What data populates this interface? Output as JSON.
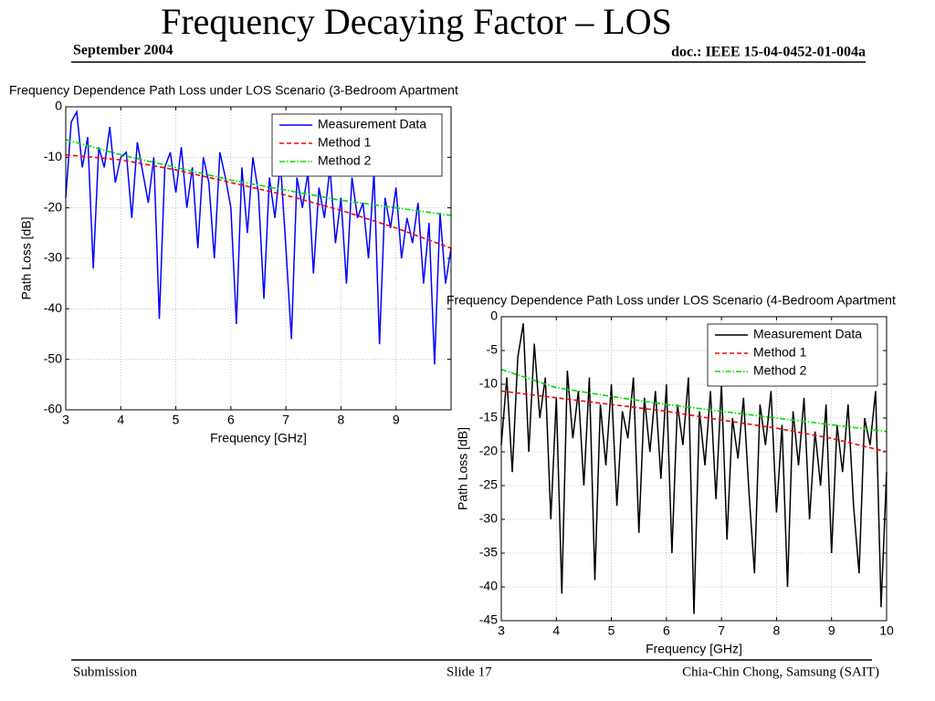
{
  "header": {
    "title": "Frequency Decaying Factor – LOS",
    "date": "September 2004",
    "doc": "doc.: IEEE 15-04-0452-01-004a"
  },
  "footer": {
    "left": "Submission",
    "center": "Slide 17",
    "right": "Chia-Chin Chong, Samsung (SAIT)"
  },
  "chart_data": [
    {
      "type": "line",
      "title": "Frequency Dependence Path Loss under LOS Scenario (3-Bedroom Apartment",
      "xlabel": "Frequency [GHz]",
      "ylabel": "Path Loss [dB]",
      "xlim": [
        3,
        10
      ],
      "xticks": [
        3,
        4,
        5,
        6,
        7,
        8,
        9
      ],
      "ylim": [
        -60,
        0
      ],
      "yticks": [
        0,
        -10,
        -20,
        -30,
        -40,
        -50,
        -60
      ],
      "grid": true,
      "legend": "upper right",
      "series": [
        {
          "name": "Measurement Data",
          "color": "#0000ff",
          "linestyle": "solid",
          "x": [
            3.0,
            3.1,
            3.2,
            3.3,
            3.4,
            3.5,
            3.6,
            3.7,
            3.8,
            3.9,
            4.0,
            4.1,
            4.2,
            4.3,
            4.4,
            4.5,
            4.6,
            4.7,
            4.8,
            4.9,
            5.0,
            5.1,
            5.2,
            5.3,
            5.4,
            5.5,
            5.6,
            5.7,
            5.8,
            5.9,
            6.0,
            6.1,
            6.2,
            6.3,
            6.4,
            6.5,
            6.6,
            6.7,
            6.8,
            6.9,
            7.0,
            7.1,
            7.2,
            7.3,
            7.4,
            7.5,
            7.6,
            7.7,
            7.8,
            7.9,
            8.0,
            8.1,
            8.2,
            8.3,
            8.4,
            8.5,
            8.6,
            8.7,
            8.8,
            8.9,
            9.0,
            9.1,
            9.2,
            9.3,
            9.4,
            9.5,
            9.6,
            9.7,
            9.8,
            9.9,
            10.0
          ],
          "values": [
            -18,
            -3,
            -1,
            -12,
            -6,
            -32,
            -8,
            -12,
            -4,
            -15,
            -10,
            -9,
            -22,
            -7,
            -13,
            -19,
            -10,
            -42,
            -12,
            -9,
            -17,
            -8,
            -20,
            -12,
            -28,
            -10,
            -15,
            -30,
            -9,
            -14,
            -20,
            -43,
            -12,
            -25,
            -10,
            -17,
            -38,
            -14,
            -22,
            -11,
            -28,
            -46,
            -14,
            -20,
            -13,
            -33,
            -16,
            -22,
            -12,
            -27,
            -18,
            -35,
            -14,
            -22,
            -19,
            -30,
            -13,
            -47,
            -18,
            -24,
            -16,
            -30,
            -22,
            -27,
            -19,
            -35,
            -23,
            -51,
            -21,
            -35,
            -28
          ]
        },
        {
          "name": "Method 1",
          "color": "#ff0000",
          "linestyle": "dashed",
          "x": [
            3,
            4,
            5,
            6,
            7,
            8,
            9,
            10
          ],
          "values": [
            -9.5,
            -10.5,
            -12.5,
            -15,
            -17.5,
            -20.5,
            -24,
            -28
          ]
        },
        {
          "name": "Method 2",
          "color": "#00dd00",
          "linestyle": "dashdot",
          "x": [
            3,
            4,
            5,
            6,
            7,
            8,
            9,
            10
          ],
          "values": [
            -6.5,
            -9.5,
            -12,
            -14.5,
            -16.5,
            -18.5,
            -20,
            -21.5
          ]
        }
      ]
    },
    {
      "type": "line",
      "title": "Frequency Dependence Path Loss under LOS Scenario (4-Bedroom Apartment",
      "xlabel": "Frequency [GHz]",
      "ylabel": "Path Loss [dB]",
      "xlim": [
        3,
        10
      ],
      "xticks": [
        3,
        4,
        5,
        6,
        7,
        8,
        9,
        10
      ],
      "ylim": [
        -45,
        0
      ],
      "yticks": [
        0,
        -5,
        -10,
        -15,
        -20,
        -25,
        -30,
        -35,
        -40,
        -45
      ],
      "grid": true,
      "legend": "upper right",
      "series": [
        {
          "name": "Measurement Data",
          "color": "#000000",
          "linestyle": "solid",
          "x": [
            3.0,
            3.1,
            3.2,
            3.3,
            3.4,
            3.5,
            3.6,
            3.7,
            3.8,
            3.9,
            4.0,
            4.1,
            4.2,
            4.3,
            4.4,
            4.5,
            4.6,
            4.7,
            4.8,
            4.9,
            5.0,
            5.1,
            5.2,
            5.3,
            5.4,
            5.5,
            5.6,
            5.7,
            5.8,
            5.9,
            6.0,
            6.1,
            6.2,
            6.3,
            6.4,
            6.5,
            6.6,
            6.7,
            6.8,
            6.9,
            7.0,
            7.1,
            7.2,
            7.3,
            7.4,
            7.5,
            7.6,
            7.7,
            7.8,
            7.9,
            8.0,
            8.1,
            8.2,
            8.3,
            8.4,
            8.5,
            8.6,
            8.7,
            8.8,
            8.9,
            9.0,
            9.1,
            9.2,
            9.3,
            9.4,
            9.5,
            9.6,
            9.7,
            9.8,
            9.9,
            10.0
          ],
          "values": [
            -19,
            -9,
            -23,
            -6,
            -1,
            -20,
            -4,
            -15,
            -9,
            -30,
            -12,
            -41,
            -8,
            -18,
            -11,
            -25,
            -9,
            -39,
            -13,
            -22,
            -10,
            -28,
            -14,
            -18,
            -9,
            -32,
            -12,
            -20,
            -11,
            -24,
            -10,
            -35,
            -13,
            -19,
            -9,
            -44,
            -14,
            -22,
            -11,
            -27,
            -10,
            -33,
            -15,
            -21,
            -12,
            -26,
            -38,
            -13,
            -19,
            -11,
            -29,
            -16,
            -40,
            -14,
            -22,
            -12,
            -30,
            -17,
            -25,
            -13,
            -35,
            -16,
            -23,
            -13,
            -28,
            -38,
            -15,
            -19,
            -11,
            -43,
            -23
          ]
        },
        {
          "name": "Method 1",
          "color": "#ff0000",
          "linestyle": "dashed",
          "x": [
            3,
            4,
            5,
            6,
            7,
            8,
            9,
            10
          ],
          "values": [
            -11,
            -12,
            -13,
            -14,
            -15.3,
            -16.5,
            -18,
            -20
          ]
        },
        {
          "name": "Method 2",
          "color": "#00dd00",
          "linestyle": "dashdot",
          "x": [
            3,
            4,
            5,
            6,
            7,
            8,
            9,
            10
          ],
          "values": [
            -7.8,
            -10.5,
            -11.8,
            -13,
            -14,
            -15,
            -16,
            -17
          ]
        }
      ]
    }
  ]
}
